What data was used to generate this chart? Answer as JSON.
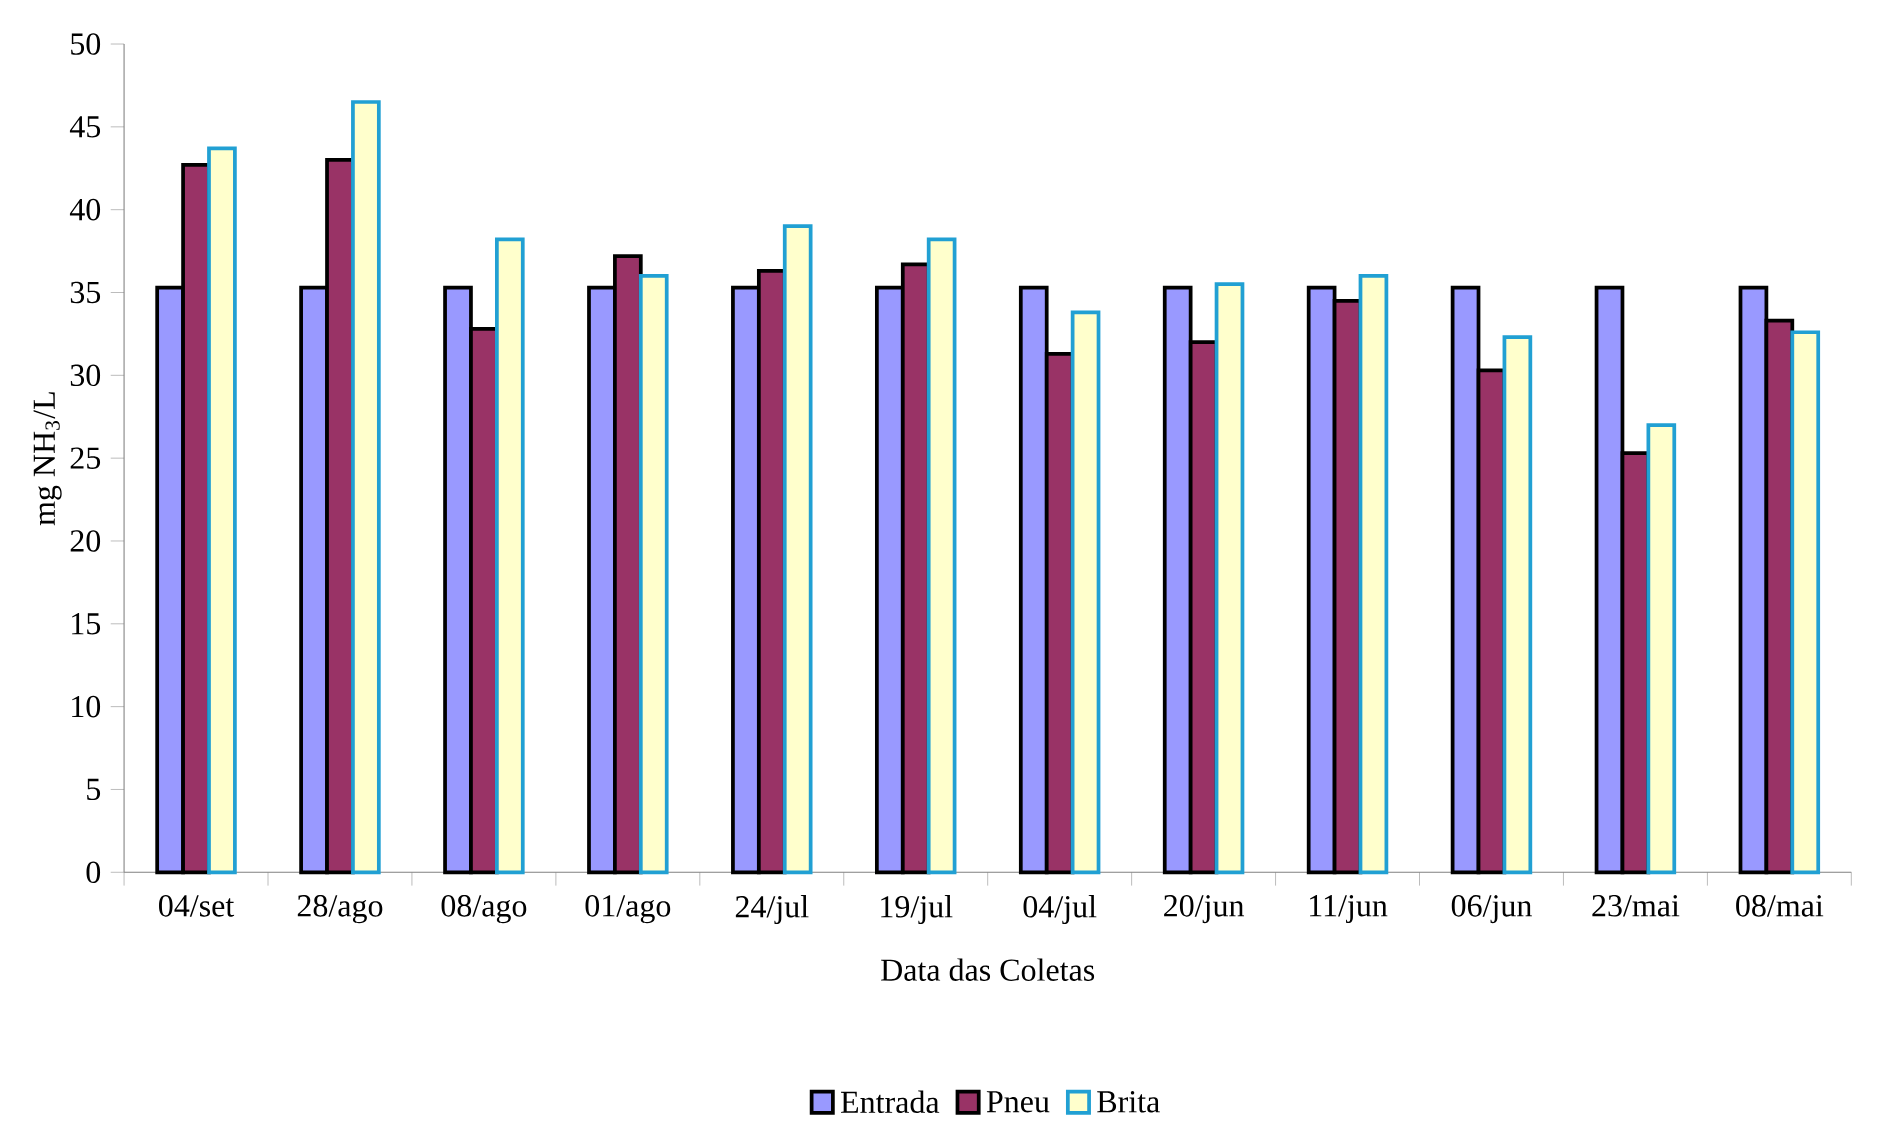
{
  "chart_data": {
    "type": "bar",
    "xlabel": "Data das Coletas",
    "ylabel": "mg NH$_{3}$/L",
    "categories": [
      "04/set",
      "28/ago",
      "08/ago",
      "01/ago",
      "24/jul",
      "19/jul",
      "04/jul",
      "20/jun",
      "11/jun",
      "06/jun",
      "23/mai",
      "08/mai"
    ],
    "series": [
      {
        "name": "Entrada",
        "color": "#9999ff",
        "values": [
          35.3,
          35.3,
          35.3,
          35.3,
          35.3,
          35.3,
          35.3,
          35.3,
          35.3,
          35.3,
          35.3,
          35.3
        ]
      },
      {
        "name": "Pneu",
        "color": "#993366",
        "values": [
          42.7,
          43.0,
          32.8,
          37.2,
          36.3,
          36.7,
          31.3,
          32.0,
          34.5,
          30.3,
          25.3,
          33.3
        ]
      },
      {
        "name": "Brita",
        "color": "#ffffcc",
        "values": [
          43.7,
          46.5,
          38.2,
          36.0,
          39.0,
          38.2,
          33.8,
          35.5,
          36.0,
          32.3,
          27.0,
          32.6
        ]
      }
    ],
    "ylim": [
      0,
      50
    ],
    "yticks": [
      0,
      5,
      10,
      15,
      20,
      25,
      30,
      35,
      40,
      45,
      50
    ],
    "legend": "bottom"
  }
}
